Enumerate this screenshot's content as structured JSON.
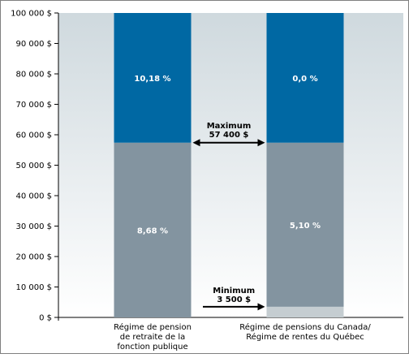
{
  "chart_data": {
    "type": "bar",
    "stacked": true,
    "ylim": [
      0,
      100000
    ],
    "ytick_step": 10000,
    "ytick_labels": [
      "0 $",
      "10 000 $",
      "20 000 $",
      "30 000 $",
      "40 000 $",
      "50 000 $",
      "60 000 $",
      "70 000 $",
      "80 000 $",
      "90 000 $",
      "100 000 $"
    ],
    "categories": [
      [
        "Régime de pension",
        "de retraite de la",
        "fonction publique"
      ],
      [
        "Régime de pensions du Canada/",
        "Régime de rentes du Québec"
      ]
    ],
    "series": [
      {
        "values": [
          0,
          3500
        ],
        "color": "#c5cdd1",
        "labels": [
          "",
          ""
        ]
      },
      {
        "values": [
          57400,
          53900
        ],
        "color": "#8394a0",
        "labels": [
          "8,68 %",
          "5,10 %"
        ]
      },
      {
        "values": [
          42600,
          42600
        ],
        "color": "#0068a3",
        "labels": [
          "10,18 %",
          "0,0 %"
        ]
      }
    ],
    "annotations": [
      {
        "lines": [
          "Maximum",
          "57 400 $"
        ],
        "y": 57400,
        "type": "double-arrow"
      },
      {
        "lines": [
          "Minimum",
          "3 500 $"
        ],
        "y": 3500,
        "type": "right-arrow"
      }
    ],
    "colors": {
      "background_top": "#cfd9de",
      "background_bottom": "#ffffff",
      "axis": "#000000",
      "frame": "#808080"
    }
  }
}
